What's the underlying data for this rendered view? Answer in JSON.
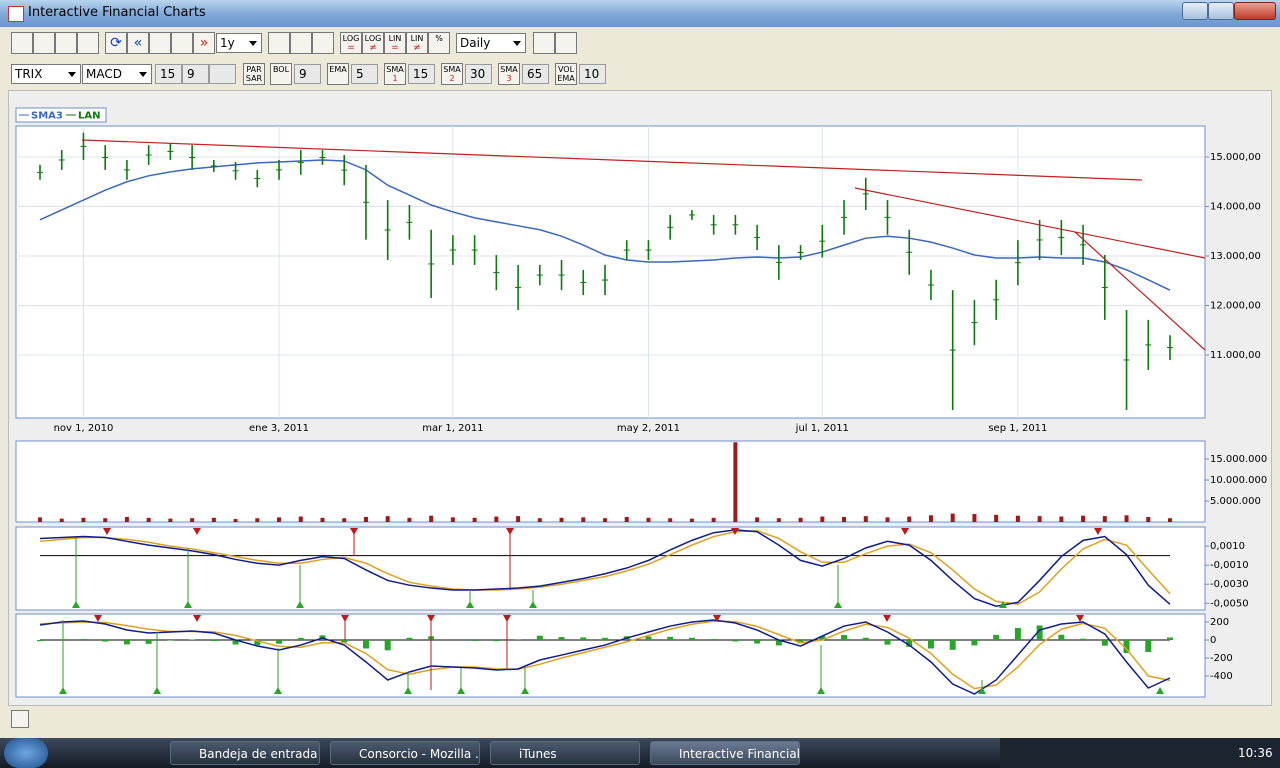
{
  "window": {
    "title": "Interactive Financial Charts"
  },
  "toolbar": {
    "range": "1y",
    "interval": "Daily",
    "scale_buttons": [
      {
        "label": "LOG",
        "mark": "="
      },
      {
        "label": "LOG",
        "mark": "≠"
      },
      {
        "label": "LIN",
        "mark": "="
      },
      {
        "label": "LIN",
        "mark": "≠"
      },
      {
        "label": "%"
      }
    ],
    "oscillator1": "TRIX",
    "oscillator2": "MACD",
    "osc_param1": 15,
    "osc_param2": 9,
    "indicators": [
      {
        "top": "PAR",
        "bottom": "SAR"
      },
      {
        "top": "BOL",
        "param": 9
      },
      {
        "top": "EMA",
        "param": 5
      },
      {
        "top": "SMA",
        "bottom": "1",
        "param": 15
      },
      {
        "top": "SMA",
        "bottom": "2",
        "param": 30
      },
      {
        "top": "SMA",
        "bottom": "3",
        "param": 65
      },
      {
        "top": "VOL",
        "bottom": "EMA",
        "param": 10
      }
    ]
  },
  "chart_data": [
    {
      "type": "hilo",
      "grid": true,
      "categories": [
        null,
        null,
        "nov 1, 2010",
        null,
        null,
        null,
        null,
        null,
        null,
        null,
        null,
        "ene 3, 2011",
        null,
        null,
        null,
        null,
        null,
        null,
        null,
        "mar 1, 2011",
        null,
        null,
        null,
        null,
        null,
        null,
        null,
        null,
        "may 2, 2011",
        null,
        null,
        null,
        null,
        null,
        null,
        null,
        "jul 1, 2011",
        null,
        null,
        null,
        null,
        null,
        null,
        null,
        null,
        "sep 1, 2011",
        null,
        null,
        null,
        null,
        null,
        null,
        null
      ],
      "ylim": [
        9728,
        15626
      ],
      "yticks": [
        {
          "value": 15000,
          "label": "15.000,00"
        },
        {
          "value": 14000,
          "label": "14.000,00"
        },
        {
          "value": 13000,
          "label": "13.000,00"
        },
        {
          "value": 12000,
          "label": "12.000,00"
        },
        {
          "value": 11000,
          "label": "11.000,00"
        }
      ],
      "series": [
        {
          "name": "SMA3",
          "color": "#3a66c4",
          "values": [
            13730,
            13930,
            14130,
            14330,
            14500,
            14620,
            14700,
            14760,
            14800,
            14840,
            14880,
            14900,
            14920,
            14940,
            14920,
            14740,
            14430,
            14230,
            14030,
            13890,
            13770,
            13690,
            13610,
            13530,
            13400,
            13220,
            13020,
            12920,
            12880,
            12880,
            12900,
            12920,
            12960,
            12980,
            12960,
            12980,
            13080,
            13220,
            13360,
            13400,
            13360,
            13280,
            13160,
            13020,
            12960,
            12960,
            12980,
            12960,
            12960,
            12880,
            12720,
            12520,
            12310
          ]
        },
        {
          "name": "LAN",
          "color": "#0a7a0a",
          "high": [
            14840,
            15140,
            15490,
            15240,
            14940,
            15240,
            15280,
            15240,
            14940,
            14900,
            14740,
            14940,
            15140,
            15140,
            15040,
            14840,
            14130,
            14030,
            13530,
            13420,
            13420,
            13020,
            12820,
            12820,
            12920,
            12720,
            12820,
            13320,
            13320,
            13830,
            13930,
            13830,
            13830,
            13630,
            13220,
            13220,
            13630,
            14130,
            14580,
            14130,
            13530,
            12720,
            12310,
            12110,
            12520,
            13320,
            13730,
            13730,
            13630,
            13020,
            11910,
            11710,
            11400
          ],
          "low": [
            14540,
            14740,
            14940,
            14740,
            14540,
            14840,
            14940,
            14740,
            14700,
            14540,
            14390,
            14540,
            14640,
            14840,
            14430,
            13330,
            12920,
            13330,
            12150,
            12820,
            12820,
            12310,
            11910,
            12410,
            12310,
            12210,
            12210,
            12920,
            12920,
            13330,
            13730,
            13430,
            13430,
            13120,
            12520,
            12920,
            12970,
            13430,
            13930,
            13430,
            12620,
            12110,
            9890,
            11200,
            11710,
            12410,
            12920,
            13020,
            12820,
            11710,
            9890,
            10700,
            10900
          ]
        }
      ]
    },
    {
      "type": "bar",
      "color": "#a01818",
      "ylim": [
        0,
        19300000
      ],
      "yticks": [
        {
          "value": 15000000,
          "label": "15.000.000"
        },
        {
          "value": 10000000,
          "label": "10.000.000"
        },
        {
          "value": 5000000,
          "label": "5.000.000"
        }
      ],
      "values": [
        1100000,
        800000,
        1000000,
        900000,
        1200000,
        1000000,
        800000,
        900000,
        1000000,
        700000,
        900000,
        1100000,
        1300000,
        1000000,
        900000,
        1200000,
        1400000,
        1000000,
        1500000,
        1100000,
        1000000,
        1300000,
        1400000,
        900000,
        1000000,
        1100000,
        900000,
        1200000,
        1000000,
        900000,
        800000,
        1000000,
        19000000,
        1100000,
        900000,
        1000000,
        1300000,
        1200000,
        1400000,
        1100000,
        1300000,
        1600000,
        2000000,
        1900000,
        1700000,
        1500000,
        1400000,
        1300000,
        1500000,
        1400000,
        1600000,
        1200000,
        900000
      ]
    },
    {
      "type": "line",
      "zero_line": true,
      "ylim": [
        -0.0057,
        0.003
      ],
      "yticks": [
        {
          "value": 0.001,
          "label": "0,0010"
        },
        {
          "value": -0.001,
          "label": "-0,0010"
        },
        {
          "value": -0.003,
          "label": "-0,0030"
        },
        {
          "value": -0.005,
          "label": "-0,0050"
        }
      ],
      "series": [
        {
          "color": "#e0a020",
          "values": [
            0.0015,
            0.0017,
            0.0019,
            0.0019,
            0.0017,
            0.0014,
            0.001,
            0.0007,
            0.0003,
            -0.0001,
            -0.0005,
            -0.0008,
            -0.0008,
            -0.0004,
            -0.0002,
            -0.0008,
            -0.0019,
            -0.0028,
            -0.0032,
            -0.0035,
            -0.0036,
            -0.0036,
            -0.0035,
            -0.0033,
            -0.003,
            -0.0026,
            -0.0022,
            -0.0016,
            -0.0009,
            0.0001,
            0.0011,
            0.002,
            0.0025,
            0.0026,
            0.0018,
            0.0004,
            -0.0007,
            -0.0007,
            0.0002,
            0.001,
            0.0012,
            0.0003,
            -0.0015,
            -0.0035,
            -0.0048,
            -0.0051,
            -0.0038,
            -0.0014,
            0.0007,
            0.0017,
            0.0011,
            -0.0015,
            -0.004
          ]
        },
        {
          "color": "#101c8c",
          "values": [
            0.0018,
            0.0019,
            0.002,
            0.0019,
            0.0015,
            0.0011,
            0.0008,
            0.0005,
            0.0001,
            -0.0004,
            -0.0008,
            -0.001,
            -0.0005,
            -0.0001,
            -0.0003,
            -0.0015,
            -0.0026,
            -0.0031,
            -0.0034,
            -0.0036,
            -0.0036,
            -0.0035,
            -0.0034,
            -0.0032,
            -0.0028,
            -0.0024,
            -0.0019,
            -0.0013,
            -0.0005,
            0.0006,
            0.0016,
            0.0024,
            0.0027,
            0.0025,
            0.0011,
            -0.0005,
            -0.0011,
            -0.0003,
            0.0008,
            0.0015,
            0.0011,
            -0.0005,
            -0.0026,
            -0.0045,
            -0.0053,
            -0.0049,
            -0.0026,
            -0.0001,
            0.0016,
            0.002,
            0.0001,
            -0.0031,
            -0.0051
          ]
        }
      ]
    },
    {
      "type": "line",
      "zero_line": true,
      "ylim": [
        -633,
        289
      ],
      "yticks": [
        200,
        0,
        -200,
        -400
      ],
      "series": [
        {
          "color": "#2aa52a",
          "style": "histogram",
          "values": [
            -13,
            10,
            11,
            -17,
            -49,
            -42,
            -6,
            5,
            -12,
            -50,
            -57,
            -41,
            24,
            52,
            -26,
            -94,
            -114,
            25,
            41,
            0,
            -11,
            -13,
            3,
            48,
            33,
            29,
            24,
            42,
            39,
            35,
            25,
            12,
            -16,
            -39,
            -60,
            -37,
            44,
            55,
            25,
            -51,
            -76,
            -94,
            -109,
            -60,
            56,
            133,
            161,
            58,
            15,
            -63,
            -144,
            -133,
            28
          ]
        },
        {
          "color": "#e0a020",
          "values": [
            180,
            190,
            200,
            195,
            160,
            120,
            95,
            95,
            90,
            50,
            -10,
            -70,
            -80,
            -30,
            -30,
            -150,
            -330,
            -380,
            -330,
            -300,
            -300,
            -320,
            -325,
            -270,
            -200,
            -140,
            -80,
            -20,
            50,
            120,
            175,
            210,
            205,
            150,
            60,
            -30,
            0,
            100,
            175,
            140,
            20,
            -150,
            -380,
            -540,
            -500,
            -300,
            -50,
            120,
            185,
            130,
            -100,
            -400,
            -450
          ]
        },
        {
          "color": "#101c8c",
          "values": [
            167,
            200,
            211,
            178,
            111,
            78,
            89,
            100,
            78,
            0,
            -67,
            -111,
            -56,
            22,
            -56,
            -244,
            -444,
            -355,
            -289,
            -300,
            -311,
            -333,
            -322,
            -222,
            -167,
            -111,
            -56,
            22,
            89,
            155,
            200,
            222,
            189,
            111,
            0,
            -67,
            44,
            155,
            200,
            89,
            -56,
            -244,
            -489,
            -600,
            -444,
            -167,
            111,
            178,
            200,
            67,
            -244,
            -533,
            -422
          ]
        }
      ]
    }
  ],
  "taskbar": {
    "tasks": [
      "Bandeja de entrada ...",
      "Consorcio - Mozilla ...",
      "iTunes",
      "Interactive Financial..."
    ],
    "clock": "10:36"
  }
}
